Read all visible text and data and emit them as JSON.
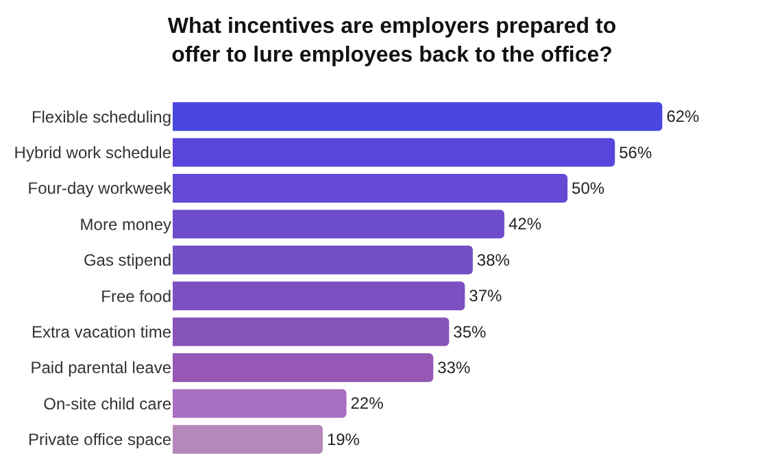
{
  "chart_data": {
    "type": "bar",
    "orientation": "horizontal",
    "title": "What incentives are employers prepared to offer to lure employees back to the office?",
    "categories": [
      "Flexible scheduling",
      "Hybrid work schedule",
      "Four-day workweek",
      "More money",
      "Gas stipend",
      "Free food",
      "Extra vacation time",
      "Paid parental leave",
      "On-site child care",
      "Private office space"
    ],
    "values": [
      62,
      56,
      50,
      42,
      38,
      37,
      35,
      33,
      22,
      19
    ],
    "value_labels": [
      "62%",
      "56%",
      "50%",
      "42%",
      "38%",
      "37%",
      "35%",
      "33%",
      "22%",
      "19%"
    ],
    "colors": [
      "#4a47e0",
      "#5846dc",
      "#6449d4",
      "#6c4cca",
      "#744ec4",
      "#7b50c0",
      "#8553ba",
      "#9558b4",
      "#a86ec0",
      "#b587ba"
    ]
  }
}
